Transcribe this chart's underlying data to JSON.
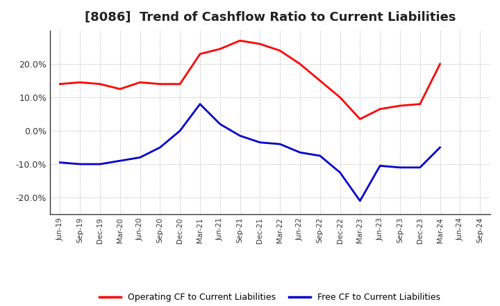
{
  "title": "[8086]  Trend of Cashflow Ratio to Current Liabilities",
  "x_labels": [
    "Jun-19",
    "Sep-19",
    "Dec-19",
    "Mar-20",
    "Jun-20",
    "Sep-20",
    "Dec-20",
    "Mar-21",
    "Jun-21",
    "Sep-21",
    "Dec-21",
    "Mar-22",
    "Jun-22",
    "Sep-22",
    "Dec-22",
    "Mar-23",
    "Jun-23",
    "Sep-23",
    "Dec-23",
    "Mar-24",
    "Jun-24",
    "Sep-24"
  ],
  "operating_cf": [
    14.0,
    14.5,
    14.0,
    12.5,
    14.5,
    14.0,
    14.0,
    23.0,
    24.5,
    27.0,
    26.0,
    24.0,
    20.0,
    15.0,
    10.0,
    3.5,
    6.5,
    7.5,
    8.0,
    20.0,
    null,
    null
  ],
  "free_cf": [
    -9.5,
    -10.0,
    -10.0,
    -9.0,
    -8.0,
    -5.0,
    0.0,
    8.0,
    2.0,
    -1.5,
    -3.5,
    -4.0,
    -6.5,
    -7.5,
    -12.5,
    -21.0,
    -10.5,
    -11.0,
    -11.0,
    -5.0,
    null,
    null
  ],
  "operating_color": "#ff0000",
  "free_color": "#0000cc",
  "ylim": [
    -25,
    30
  ],
  "yticks": [
    -20,
    -10,
    0,
    10,
    20
  ],
  "background_color": "#ffffff",
  "plot_bg_color": "#ffffff",
  "grid_color": "#aaaaaa",
  "title_fontsize": 13,
  "legend_labels": [
    "Operating CF to Current Liabilities",
    "Free CF to Current Liabilities"
  ]
}
